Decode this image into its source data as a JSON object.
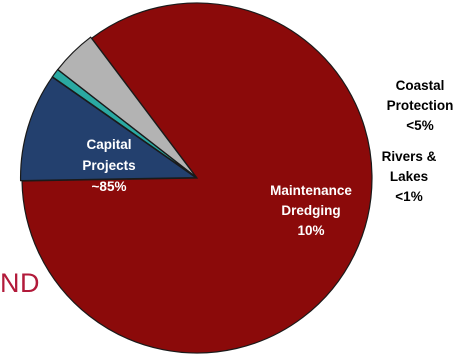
{
  "background_text": "ND",
  "chart_data": {
    "type": "pie",
    "slices": [
      {
        "label_lines": [
          "Capital",
          "Projects",
          "~85%"
        ],
        "value": 85,
        "color": "#8b0a0a"
      },
      {
        "label_lines": [
          "Maintenance",
          "Dredging",
          "10%"
        ],
        "value": 10,
        "color": "#23406e"
      },
      {
        "label_lines": [
          "Rivers &",
          "Lakes",
          "<1%"
        ],
        "value": 0.8,
        "color": "#2aa9a2"
      },
      {
        "label_lines": [
          "Coastal",
          "Protection",
          "<5%"
        ],
        "value": 4.2,
        "color": "#b3b3b3"
      }
    ]
  }
}
